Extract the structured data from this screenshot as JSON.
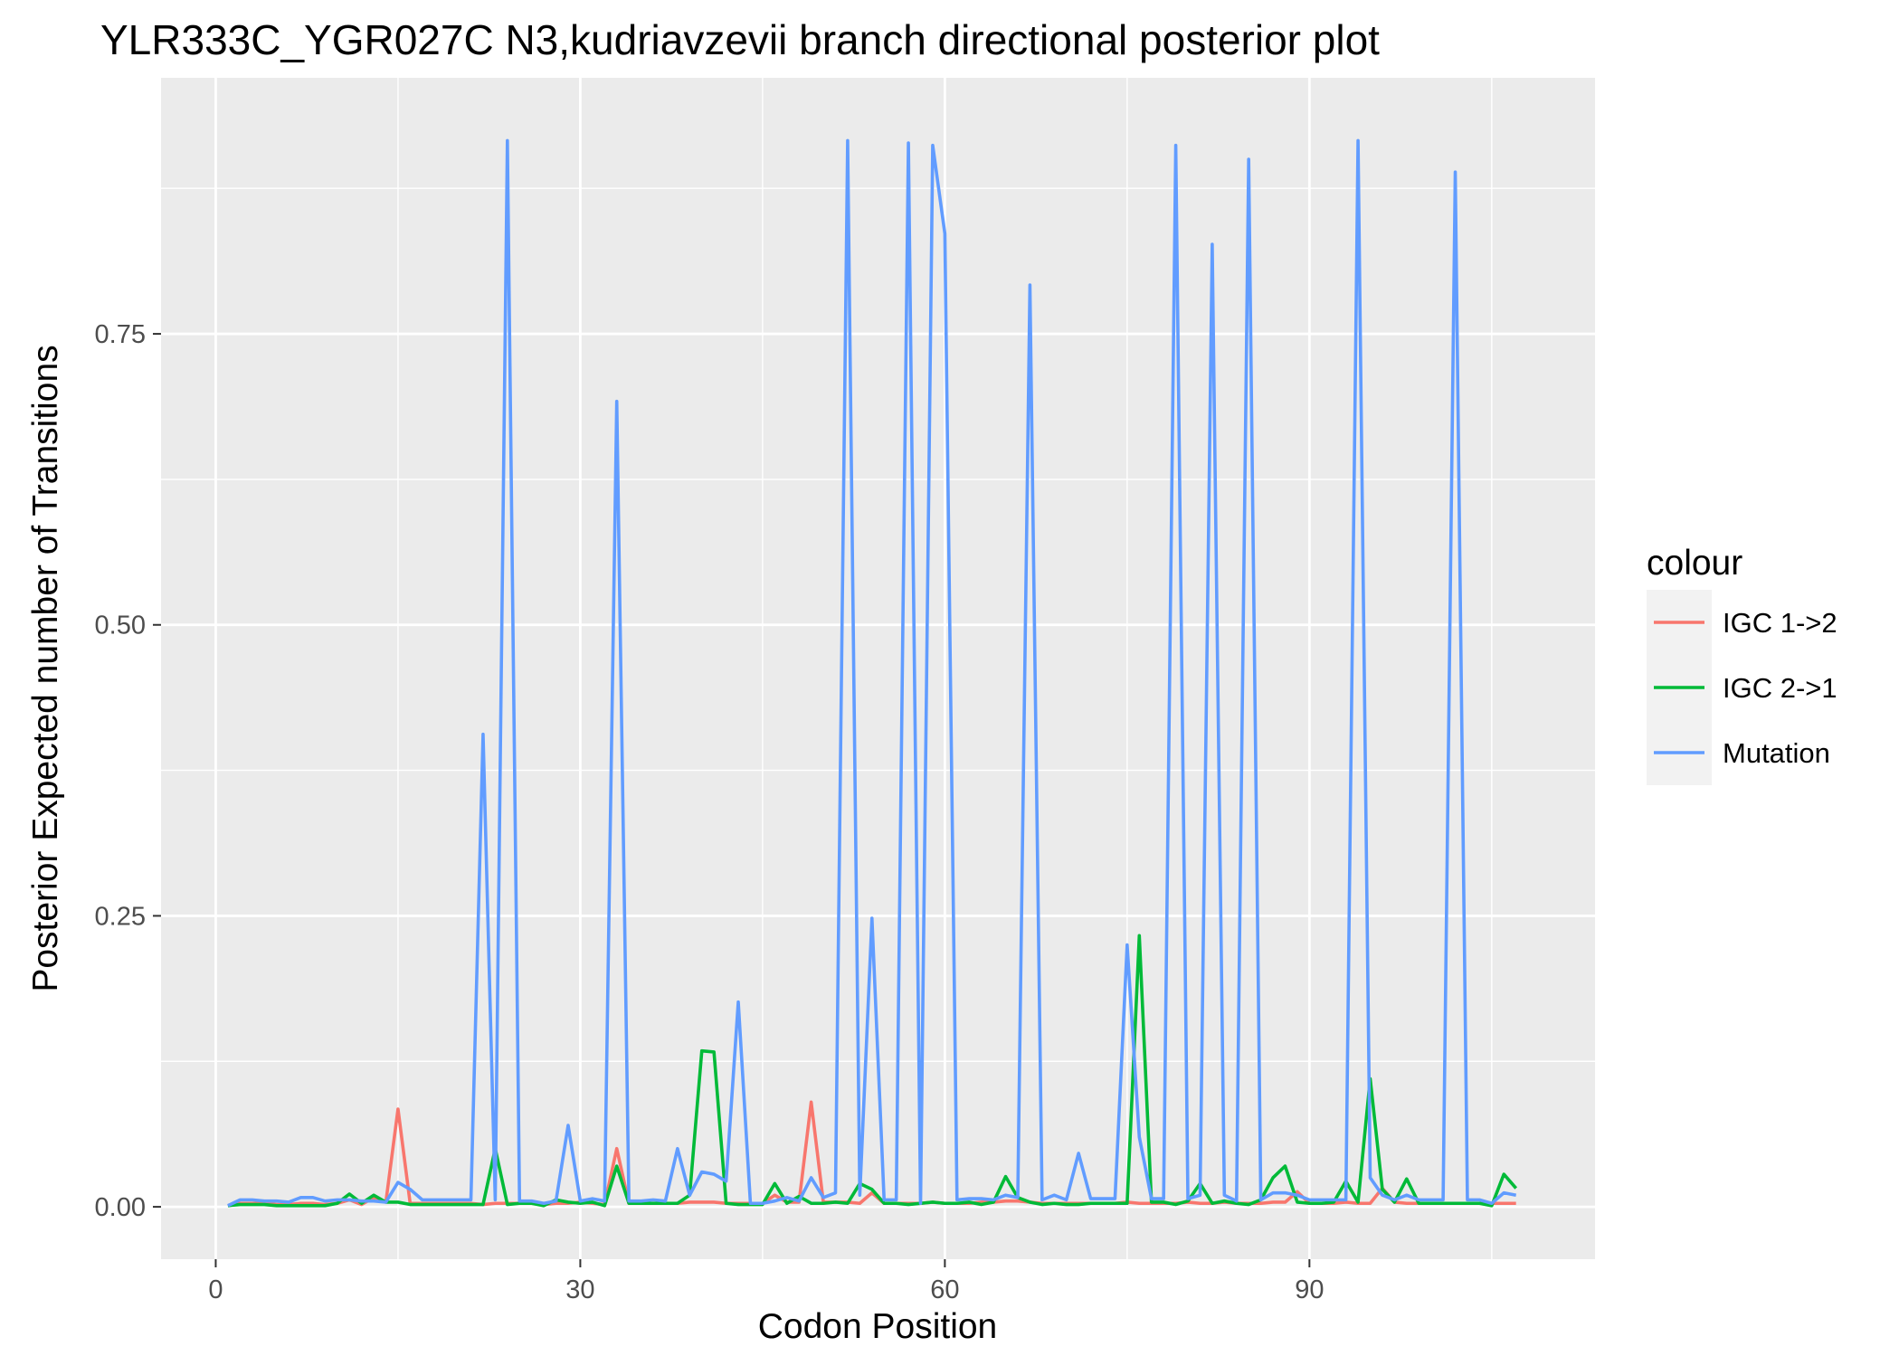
{
  "chart_data": {
    "type": "line",
    "title": "YLR333C_YGR027C N3,kudriavzevii branch directional posterior plot",
    "xlabel": "Codon Position",
    "ylabel": "Posterior Expected number of Transitions",
    "xlim": [
      -4.5,
      113.5
    ],
    "ylim": [
      -0.045,
      0.97
    ],
    "xticks": [
      0,
      30,
      60,
      90
    ],
    "xtick_labels": [
      "0",
      "30",
      "60",
      "90"
    ],
    "yticks": [
      0,
      0.25,
      0.5,
      0.75
    ],
    "ytick_labels": [
      "0.00",
      "0.25",
      "0.50",
      "0.75"
    ],
    "grid": true,
    "legend": {
      "title": "colour",
      "position": "right"
    },
    "series": [
      {
        "name": "IGC 1->2",
        "color": "#F8766D",
        "x": [
          1,
          2,
          3,
          4,
          5,
          6,
          7,
          8,
          9,
          10,
          11,
          12,
          13,
          14,
          15,
          16,
          17,
          18,
          19,
          20,
          21,
          22,
          23,
          24,
          25,
          26,
          27,
          28,
          29,
          30,
          31,
          32,
          33,
          34,
          35,
          36,
          37,
          38,
          39,
          40,
          41,
          42,
          43,
          44,
          45,
          46,
          47,
          48,
          49,
          50,
          51,
          52,
          53,
          54,
          55,
          56,
          57,
          58,
          59,
          60,
          61,
          62,
          63,
          64,
          65,
          66,
          67,
          68,
          69,
          70,
          71,
          72,
          73,
          74,
          75,
          76,
          77,
          78,
          79,
          80,
          81,
          82,
          83,
          84,
          85,
          86,
          87,
          88,
          89,
          90,
          91,
          92,
          93,
          94,
          95,
          96,
          97,
          98,
          99,
          100,
          101,
          102,
          103,
          104,
          105,
          106,
          107
        ],
        "y": [
          0.001,
          0.003,
          0.003,
          0.003,
          0.002,
          0.002,
          0.003,
          0.003,
          0.002,
          0.003,
          0.006,
          0.002,
          0.008,
          0.004,
          0.084,
          0.003,
          0.003,
          0.003,
          0.003,
          0.003,
          0.003,
          0.002,
          0.003,
          0.003,
          0.003,
          0.003,
          0.002,
          0.003,
          0.003,
          0.004,
          0.003,
          0.002,
          0.05,
          0.003,
          0.003,
          0.003,
          0.003,
          0.003,
          0.004,
          0.004,
          0.004,
          0.003,
          0.003,
          0.003,
          0.003,
          0.01,
          0.004,
          0.004,
          0.09,
          0.004,
          0.004,
          0.004,
          0.003,
          0.012,
          0.003,
          0.003,
          0.003,
          0.003,
          0.004,
          0.003,
          0.003,
          0.003,
          0.004,
          0.004,
          0.005,
          0.005,
          0.004,
          0.003,
          0.003,
          0.003,
          0.003,
          0.003,
          0.003,
          0.003,
          0.004,
          0.003,
          0.003,
          0.003,
          0.003,
          0.004,
          0.003,
          0.003,
          0.004,
          0.003,
          0.003,
          0.003,
          0.004,
          0.004,
          0.013,
          0.003,
          0.003,
          0.003,
          0.004,
          0.003,
          0.003,
          0.016,
          0.004,
          0.003,
          0.003,
          0.003,
          0.003,
          0.003,
          0.003,
          0.003,
          0.003,
          0.003,
          0.003
        ]
      },
      {
        "name": "IGC 2->1",
        "color": "#00BA38",
        "x": [
          1,
          2,
          3,
          4,
          5,
          6,
          7,
          8,
          9,
          10,
          11,
          12,
          13,
          14,
          15,
          16,
          17,
          18,
          19,
          20,
          21,
          22,
          23,
          24,
          25,
          26,
          27,
          28,
          29,
          30,
          31,
          32,
          33,
          34,
          35,
          36,
          37,
          38,
          39,
          40,
          41,
          42,
          43,
          44,
          45,
          46,
          47,
          48,
          49,
          50,
          51,
          52,
          53,
          54,
          55,
          56,
          57,
          58,
          59,
          60,
          61,
          62,
          63,
          64,
          65,
          66,
          67,
          68,
          69,
          70,
          71,
          72,
          73,
          74,
          75,
          76,
          77,
          78,
          79,
          80,
          81,
          82,
          83,
          84,
          85,
          86,
          87,
          88,
          89,
          90,
          91,
          92,
          93,
          94,
          95,
          96,
          97,
          98,
          99,
          100,
          101,
          102,
          103,
          104,
          105,
          106,
          107
        ],
        "y": [
          0.001,
          0.002,
          0.002,
          0.002,
          0.001,
          0.001,
          0.001,
          0.001,
          0.001,
          0.003,
          0.011,
          0.003,
          0.01,
          0.004,
          0.004,
          0.002,
          0.002,
          0.002,
          0.002,
          0.002,
          0.002,
          0.002,
          0.05,
          0.002,
          0.003,
          0.003,
          0.001,
          0.006,
          0.004,
          0.003,
          0.004,
          0.001,
          0.035,
          0.003,
          0.003,
          0.003,
          0.003,
          0.003,
          0.01,
          0.134,
          0.133,
          0.003,
          0.002,
          0.002,
          0.002,
          0.02,
          0.003,
          0.009,
          0.003,
          0.003,
          0.004,
          0.003,
          0.02,
          0.015,
          0.003,
          0.003,
          0.002,
          0.003,
          0.004,
          0.003,
          0.003,
          0.004,
          0.002,
          0.004,
          0.026,
          0.008,
          0.004,
          0.002,
          0.003,
          0.002,
          0.002,
          0.003,
          0.003,
          0.003,
          0.003,
          0.233,
          0.004,
          0.004,
          0.002,
          0.005,
          0.02,
          0.003,
          0.005,
          0.003,
          0.002,
          0.006,
          0.025,
          0.035,
          0.004,
          0.003,
          0.003,
          0.004,
          0.022,
          0.004,
          0.11,
          0.015,
          0.004,
          0.024,
          0.003,
          0.003,
          0.003,
          0.003,
          0.003,
          0.003,
          0.001,
          0.028,
          0.016
        ]
      },
      {
        "name": "Mutation",
        "color": "#619CFF",
        "x": [
          1,
          2,
          3,
          4,
          5,
          6,
          7,
          8,
          9,
          10,
          11,
          12,
          13,
          14,
          15,
          16,
          17,
          18,
          19,
          20,
          21,
          22,
          23,
          24,
          25,
          26,
          27,
          28,
          29,
          30,
          31,
          32,
          33,
          34,
          35,
          36,
          37,
          38,
          39,
          40,
          41,
          42,
          43,
          44,
          45,
          46,
          47,
          48,
          49,
          50,
          51,
          52,
          53,
          54,
          55,
          56,
          57,
          58,
          59,
          60,
          61,
          62,
          63,
          64,
          65,
          66,
          67,
          68,
          69,
          70,
          71,
          72,
          73,
          74,
          75,
          76,
          77,
          78,
          79,
          80,
          81,
          82,
          83,
          84,
          85,
          86,
          87,
          88,
          89,
          90,
          91,
          92,
          93,
          94,
          95,
          96,
          97,
          98,
          99,
          100,
          101,
          102,
          103,
          104,
          105,
          106,
          107
        ],
        "y": [
          0.001,
          0.006,
          0.006,
          0.005,
          0.005,
          0.004,
          0.008,
          0.008,
          0.005,
          0.006,
          0.006,
          0.005,
          0.005,
          0.004,
          0.021,
          0.015,
          0.006,
          0.006,
          0.006,
          0.006,
          0.006,
          0.406,
          0.006,
          0.916,
          0.005,
          0.005,
          0.003,
          0.005,
          0.07,
          0.005,
          0.007,
          0.005,
          0.692,
          0.005,
          0.005,
          0.006,
          0.005,
          0.05,
          0.01,
          0.03,
          0.028,
          0.022,
          0.176,
          0.003,
          0.003,
          0.005,
          0.008,
          0.005,
          0.025,
          0.008,
          0.012,
          0.916,
          0.01,
          0.248,
          0.006,
          0.006,
          0.914,
          0.003,
          0.912,
          0.836,
          0.006,
          0.007,
          0.007,
          0.006,
          0.01,
          0.008,
          0.792,
          0.006,
          0.01,
          0.006,
          0.046,
          0.007,
          0.007,
          0.007,
          0.225,
          0.06,
          0.007,
          0.007,
          0.912,
          0.007,
          0.01,
          0.827,
          0.01,
          0.005,
          0.9,
          0.006,
          0.012,
          0.012,
          0.01,
          0.006,
          0.006,
          0.006,
          0.006,
          0.916,
          0.025,
          0.01,
          0.006,
          0.01,
          0.006,
          0.006,
          0.006,
          0.889,
          0.006,
          0.006,
          0.003,
          0.012,
          0.01
        ]
      }
    ]
  }
}
